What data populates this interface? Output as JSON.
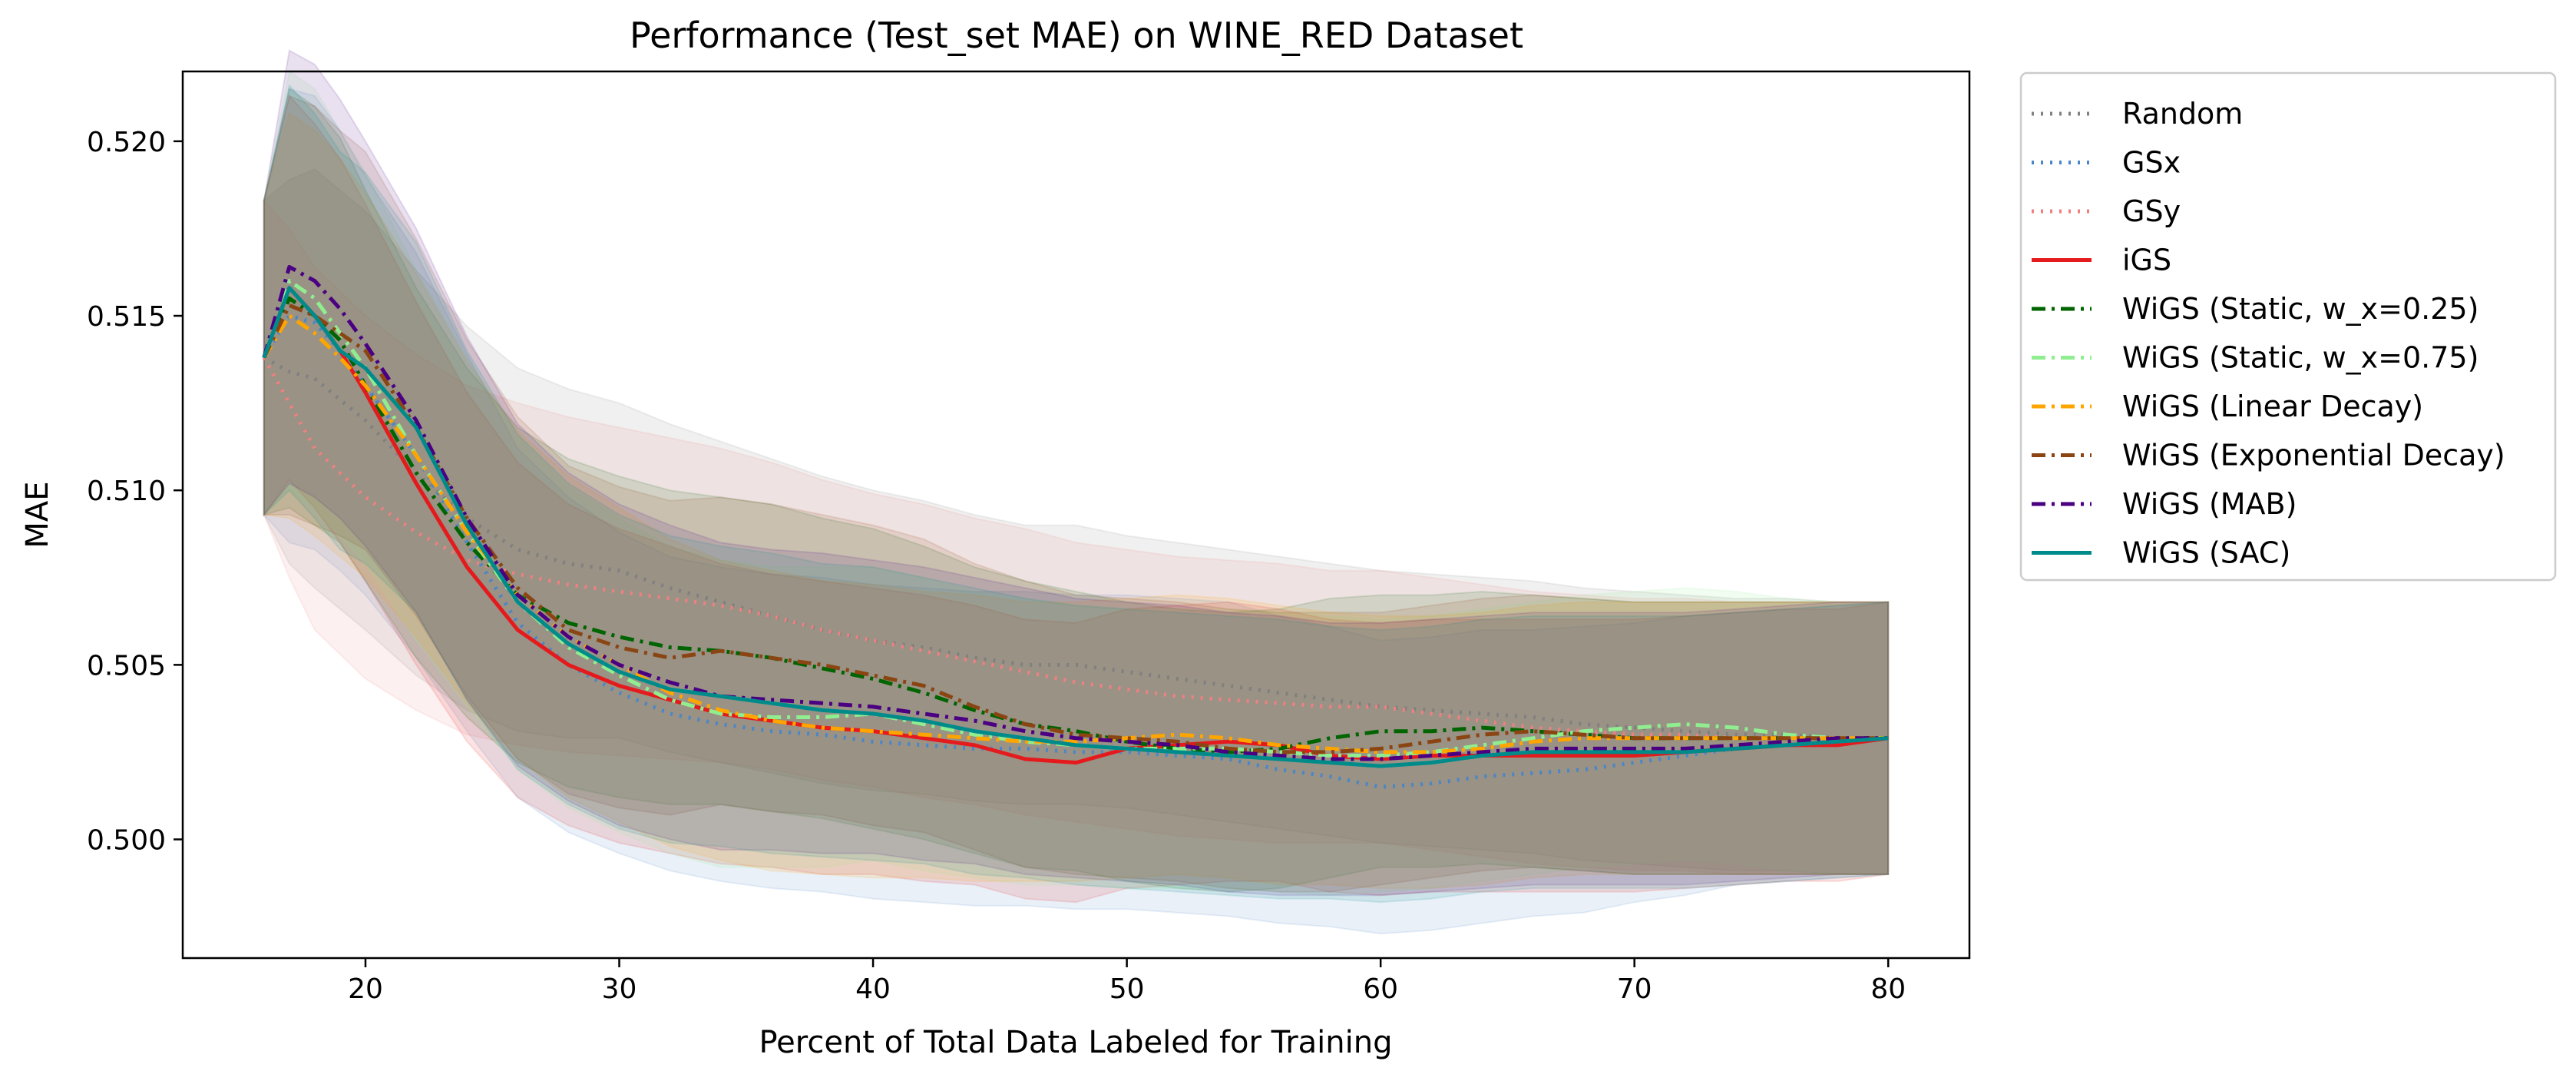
{
  "chart_data": {
    "type": "line",
    "title": "Performance (Test_set MAE) on WINE_RED Dataset",
    "xlabel": "Percent of Total Data Labeled for Training",
    "ylabel": "MAE",
    "xlim": [
      12.8,
      83.2
    ],
    "ylim": [
      0.4966,
      0.522
    ],
    "xticks": [
      20,
      30,
      40,
      50,
      60,
      70,
      80
    ],
    "yticks": [
      0.5,
      0.505,
      0.51,
      0.515,
      0.52
    ],
    "xtick_labels": [
      "20",
      "30",
      "40",
      "50",
      "60",
      "70",
      "80"
    ],
    "ytick_labels": [
      "0.500",
      "0.505",
      "0.510",
      "0.515",
      "0.520"
    ],
    "grid": false,
    "legend": "outside-right-top",
    "x": [
      16,
      17,
      18,
      19,
      20,
      22,
      24,
      26,
      28,
      30,
      32,
      34,
      36,
      38,
      40,
      42,
      44,
      46,
      48,
      50,
      52,
      54,
      56,
      58,
      60,
      62,
      64,
      66,
      68,
      70,
      72,
      74,
      76,
      78,
      80
    ],
    "series": [
      {
        "name": "Random",
        "color": "#808080",
        "dash": "dotted",
        "values": [
          0.5138,
          0.5134,
          0.5132,
          0.5126,
          0.512,
          0.5105,
          0.5092,
          0.5083,
          0.5079,
          0.5077,
          0.5072,
          0.5068,
          0.5064,
          0.506,
          0.5057,
          0.5055,
          0.5052,
          0.505,
          0.505,
          0.5048,
          0.5046,
          0.5044,
          0.5042,
          0.504,
          0.5038,
          0.5037,
          0.5036,
          0.5035,
          0.5033,
          0.5032,
          0.5031,
          0.503,
          0.503,
          0.5029,
          0.5029
        ],
        "band": [
          0.0045,
          0.0055,
          0.006,
          0.006,
          0.006,
          0.0058,
          0.0055,
          0.0052,
          0.005,
          0.0048,
          0.0047,
          0.0046,
          0.0045,
          0.0044,
          0.0043,
          0.0042,
          0.0041,
          0.004,
          0.004,
          0.0039,
          0.0039,
          0.0039,
          0.0039,
          0.0039,
          0.0039,
          0.0039,
          0.0039,
          0.0039,
          0.0039,
          0.0039,
          0.0039,
          0.0039,
          0.0039,
          0.0039,
          0.0039
        ]
      },
      {
        "name": "GSx",
        "color": "#4a86c8",
        "dash": "dotted",
        "values": [
          0.5138,
          0.515,
          0.5148,
          0.514,
          0.513,
          0.511,
          0.5085,
          0.5062,
          0.505,
          0.5042,
          0.5036,
          0.5033,
          0.5031,
          0.503,
          0.5028,
          0.5027,
          0.5026,
          0.5026,
          0.5025,
          0.5025,
          0.5024,
          0.5023,
          0.502,
          0.5018,
          0.5015,
          0.5016,
          0.5018,
          0.5019,
          0.502,
          0.5022,
          0.5024,
          0.5026,
          0.5027,
          0.5028,
          0.5029
        ],
        "band": [
          0.0045,
          0.0065,
          0.0065,
          0.0063,
          0.006,
          0.0058,
          0.0054,
          0.005,
          0.0048,
          0.0046,
          0.0045,
          0.0045,
          0.0045,
          0.0045,
          0.0045,
          0.0045,
          0.0045,
          0.0045,
          0.0045,
          0.0045,
          0.0045,
          0.0045,
          0.0044,
          0.0043,
          0.0042,
          0.0042,
          0.0042,
          0.0041,
          0.0041,
          0.004,
          0.004,
          0.0039,
          0.0039,
          0.0039,
          0.0039
        ]
      },
      {
        "name": "GSy",
        "color": "#f08080",
        "dash": "dotted",
        "values": [
          0.5138,
          0.5125,
          0.5112,
          0.5105,
          0.5098,
          0.5088,
          0.508,
          0.5076,
          0.5073,
          0.5071,
          0.5069,
          0.5067,
          0.5064,
          0.506,
          0.5057,
          0.5054,
          0.5051,
          0.5048,
          0.5045,
          0.5043,
          0.5041,
          0.504,
          0.5039,
          0.5038,
          0.5038,
          0.5036,
          0.5034,
          0.5032,
          0.5031,
          0.503,
          0.503,
          0.5029,
          0.5029,
          0.5029,
          0.5029
        ],
        "band": [
          0.0045,
          0.005,
          0.0052,
          0.0052,
          0.0052,
          0.0051,
          0.005,
          0.0049,
          0.0048,
          0.0047,
          0.0046,
          0.0045,
          0.0044,
          0.0043,
          0.0042,
          0.0042,
          0.0041,
          0.0041,
          0.004,
          0.004,
          0.004,
          0.004,
          0.004,
          0.0039,
          0.0039,
          0.0039,
          0.0039,
          0.0039,
          0.0039,
          0.0039,
          0.0039,
          0.0039,
          0.0039,
          0.0039,
          0.0039
        ]
      },
      {
        "name": "iGS",
        "color": "#e41a1c",
        "dash": "solid",
        "values": [
          0.5138,
          0.5158,
          0.515,
          0.514,
          0.5128,
          0.5102,
          0.5078,
          0.506,
          0.505,
          0.5044,
          0.504,
          0.5036,
          0.5034,
          0.5032,
          0.5031,
          0.5029,
          0.5027,
          0.5023,
          0.5022,
          0.5026,
          0.5027,
          0.5028,
          0.5027,
          0.5024,
          0.5023,
          0.5024,
          0.5024,
          0.5024,
          0.5024,
          0.5024,
          0.5025,
          0.5026,
          0.5027,
          0.5027,
          0.5029
        ],
        "band": [
          0.0045,
          0.0055,
          0.0055,
          0.0055,
          0.0054,
          0.0052,
          0.005,
          0.0048,
          0.0046,
          0.0045,
          0.0044,
          0.0043,
          0.0042,
          0.0042,
          0.0041,
          0.0041,
          0.004,
          0.004,
          0.004,
          0.004,
          0.004,
          0.004,
          0.0039,
          0.0039,
          0.0039,
          0.0039,
          0.0039,
          0.0039,
          0.0039,
          0.0039,
          0.0039,
          0.0039,
          0.0039,
          0.0039,
          0.0039
        ]
      },
      {
        "name": "WiGS (Static, w_x=0.25)",
        "color": "#006400",
        "dash": "dashdot",
        "values": [
          0.5138,
          0.5155,
          0.515,
          0.5143,
          0.513,
          0.5105,
          0.5085,
          0.507,
          0.5062,
          0.5058,
          0.5055,
          0.5054,
          0.5052,
          0.5049,
          0.5046,
          0.5042,
          0.5037,
          0.5033,
          0.5031,
          0.5028,
          0.5026,
          0.5025,
          0.5026,
          0.5029,
          0.5031,
          0.5031,
          0.5032,
          0.5031,
          0.503,
          0.5029,
          0.5029,
          0.5029,
          0.5029,
          0.5029,
          0.5029
        ],
        "band": [
          0.0045,
          0.006,
          0.006,
          0.0058,
          0.0056,
          0.0053,
          0.005,
          0.0048,
          0.0047,
          0.0046,
          0.0045,
          0.0044,
          0.0044,
          0.0043,
          0.0043,
          0.0042,
          0.0041,
          0.0041,
          0.004,
          0.004,
          0.004,
          0.004,
          0.004,
          0.004,
          0.0039,
          0.0039,
          0.0039,
          0.0039,
          0.0039,
          0.0039,
          0.0039,
          0.0039,
          0.0039,
          0.0039,
          0.0039
        ]
      },
      {
        "name": "WiGS (Static, w_x=0.75)",
        "color": "#90ee90",
        "dash": "dashdot",
        "values": [
          0.5138,
          0.516,
          0.5155,
          0.5145,
          0.5135,
          0.511,
          0.5088,
          0.5068,
          0.5055,
          0.5047,
          0.504,
          0.5036,
          0.5035,
          0.5035,
          0.5036,
          0.5033,
          0.503,
          0.5028,
          0.5027,
          0.5026,
          0.5026,
          0.5026,
          0.5025,
          0.5024,
          0.5024,
          0.5025,
          0.5027,
          0.5029,
          0.5031,
          0.5032,
          0.5033,
          0.5032,
          0.503,
          0.5029,
          0.5029
        ],
        "band": [
          0.0045,
          0.006,
          0.006,
          0.0058,
          0.0056,
          0.0053,
          0.005,
          0.0048,
          0.0046,
          0.0045,
          0.0044,
          0.0044,
          0.0043,
          0.0043,
          0.0042,
          0.0042,
          0.0041,
          0.0041,
          0.004,
          0.004,
          0.004,
          0.004,
          0.004,
          0.004,
          0.0039,
          0.0039,
          0.0039,
          0.0039,
          0.0039,
          0.0039,
          0.0039,
          0.0039,
          0.0039,
          0.0039,
          0.0039
        ]
      },
      {
        "name": "WiGS (Linear Decay)",
        "color": "#ffa500",
        "dash": "dashdot",
        "values": [
          0.5138,
          0.515,
          0.5145,
          0.5138,
          0.513,
          0.511,
          0.5088,
          0.507,
          0.5058,
          0.505,
          0.5042,
          0.5037,
          0.5034,
          0.5032,
          0.5031,
          0.503,
          0.5029,
          0.5028,
          0.5028,
          0.5029,
          0.503,
          0.5029,
          0.5027,
          0.5026,
          0.5025,
          0.5025,
          0.5026,
          0.5028,
          0.5029,
          0.5029,
          0.5029,
          0.5029,
          0.5029,
          0.5029,
          0.5029
        ],
        "band": [
          0.0045,
          0.0058,
          0.0058,
          0.0057,
          0.0055,
          0.0052,
          0.0049,
          0.0047,
          0.0046,
          0.0045,
          0.0044,
          0.0043,
          0.0043,
          0.0042,
          0.0042,
          0.0041,
          0.0041,
          0.004,
          0.004,
          0.004,
          0.004,
          0.004,
          0.004,
          0.0039,
          0.0039,
          0.0039,
          0.0039,
          0.0039,
          0.0039,
          0.0039,
          0.0039,
          0.0039,
          0.0039,
          0.0039,
          0.0039
        ]
      },
      {
        "name": "WiGS (Exponential Decay)",
        "color": "#8b4513",
        "dash": "dashdot",
        "values": [
          0.5138,
          0.5153,
          0.515,
          0.5145,
          0.514,
          0.5118,
          0.5092,
          0.5072,
          0.506,
          0.5055,
          0.5052,
          0.5054,
          0.5052,
          0.505,
          0.5047,
          0.5044,
          0.5038,
          0.5033,
          0.503,
          0.5029,
          0.5028,
          0.5026,
          0.5025,
          0.5025,
          0.5026,
          0.5028,
          0.503,
          0.5031,
          0.503,
          0.5029,
          0.5029,
          0.5029,
          0.5029,
          0.5029,
          0.5029
        ],
        "band": [
          0.0045,
          0.006,
          0.006,
          0.0058,
          0.0057,
          0.0054,
          0.0051,
          0.0049,
          0.0047,
          0.0046,
          0.0045,
          0.0044,
          0.0044,
          0.0043,
          0.0043,
          0.0042,
          0.0041,
          0.0041,
          0.004,
          0.004,
          0.004,
          0.004,
          0.004,
          0.004,
          0.0039,
          0.0039,
          0.0039,
          0.0039,
          0.0039,
          0.0039,
          0.0039,
          0.0039,
          0.0039,
          0.0039,
          0.0039
        ]
      },
      {
        "name": "WiGS (MAB)",
        "color": "#4b0082",
        "dash": "dashdot",
        "values": [
          0.5138,
          0.5164,
          0.516,
          0.5152,
          0.5142,
          0.512,
          0.5092,
          0.507,
          0.5058,
          0.505,
          0.5045,
          0.5041,
          0.504,
          0.5039,
          0.5038,
          0.5036,
          0.5034,
          0.5031,
          0.5029,
          0.5028,
          0.5027,
          0.5025,
          0.5024,
          0.5023,
          0.5023,
          0.5024,
          0.5025,
          0.5026,
          0.5026,
          0.5026,
          0.5026,
          0.5027,
          0.5028,
          0.5029,
          0.5029
        ],
        "band": [
          0.0045,
          0.0062,
          0.0062,
          0.006,
          0.0058,
          0.0055,
          0.0052,
          0.0049,
          0.0047,
          0.0046,
          0.0045,
          0.0044,
          0.0043,
          0.0043,
          0.0042,
          0.0042,
          0.0041,
          0.0041,
          0.004,
          0.004,
          0.004,
          0.004,
          0.004,
          0.0039,
          0.0039,
          0.0039,
          0.0039,
          0.0039,
          0.0039,
          0.0039,
          0.0039,
          0.0039,
          0.0039,
          0.0039,
          0.0039
        ]
      },
      {
        "name": "WiGS (SAC)",
        "color": "#008b8b",
        "dash": "solid",
        "values": [
          0.5138,
          0.5158,
          0.515,
          0.514,
          0.5135,
          0.5118,
          0.509,
          0.5068,
          0.5056,
          0.5048,
          0.5043,
          0.5041,
          0.5039,
          0.5037,
          0.5036,
          0.5034,
          0.5031,
          0.5029,
          0.5027,
          0.5026,
          0.5025,
          0.5024,
          0.5023,
          0.5022,
          0.5021,
          0.5022,
          0.5024,
          0.5025,
          0.5025,
          0.5025,
          0.5025,
          0.5026,
          0.5027,
          0.5028,
          0.5029
        ],
        "band": [
          0.0045,
          0.0058,
          0.0058,
          0.0057,
          0.0056,
          0.0053,
          0.005,
          0.0048,
          0.0046,
          0.0045,
          0.0044,
          0.0043,
          0.0043,
          0.0042,
          0.0042,
          0.0041,
          0.0041,
          0.004,
          0.004,
          0.004,
          0.004,
          0.004,
          0.004,
          0.0039,
          0.0039,
          0.0039,
          0.0039,
          0.0039,
          0.0039,
          0.0039,
          0.0039,
          0.0039,
          0.0039,
          0.0039,
          0.0039
        ]
      }
    ]
  }
}
